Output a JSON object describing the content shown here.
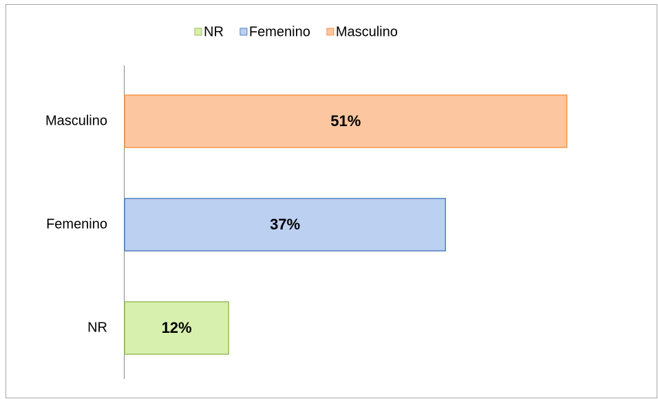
{
  "chart_data": {
    "type": "bar",
    "orientation": "horizontal",
    "categories": [
      "NR",
      "Femenino",
      "Masculino"
    ],
    "values": [
      12,
      37,
      51
    ],
    "value_labels": [
      "12%",
      "37%",
      "51%"
    ],
    "colors": [
      "#d8f0ae",
      "#bcd0f2",
      "#fcc6a0"
    ],
    "border_colors": [
      "#9bbb59",
      "#4f81bd",
      "#f79646"
    ],
    "legend": "top"
  }
}
